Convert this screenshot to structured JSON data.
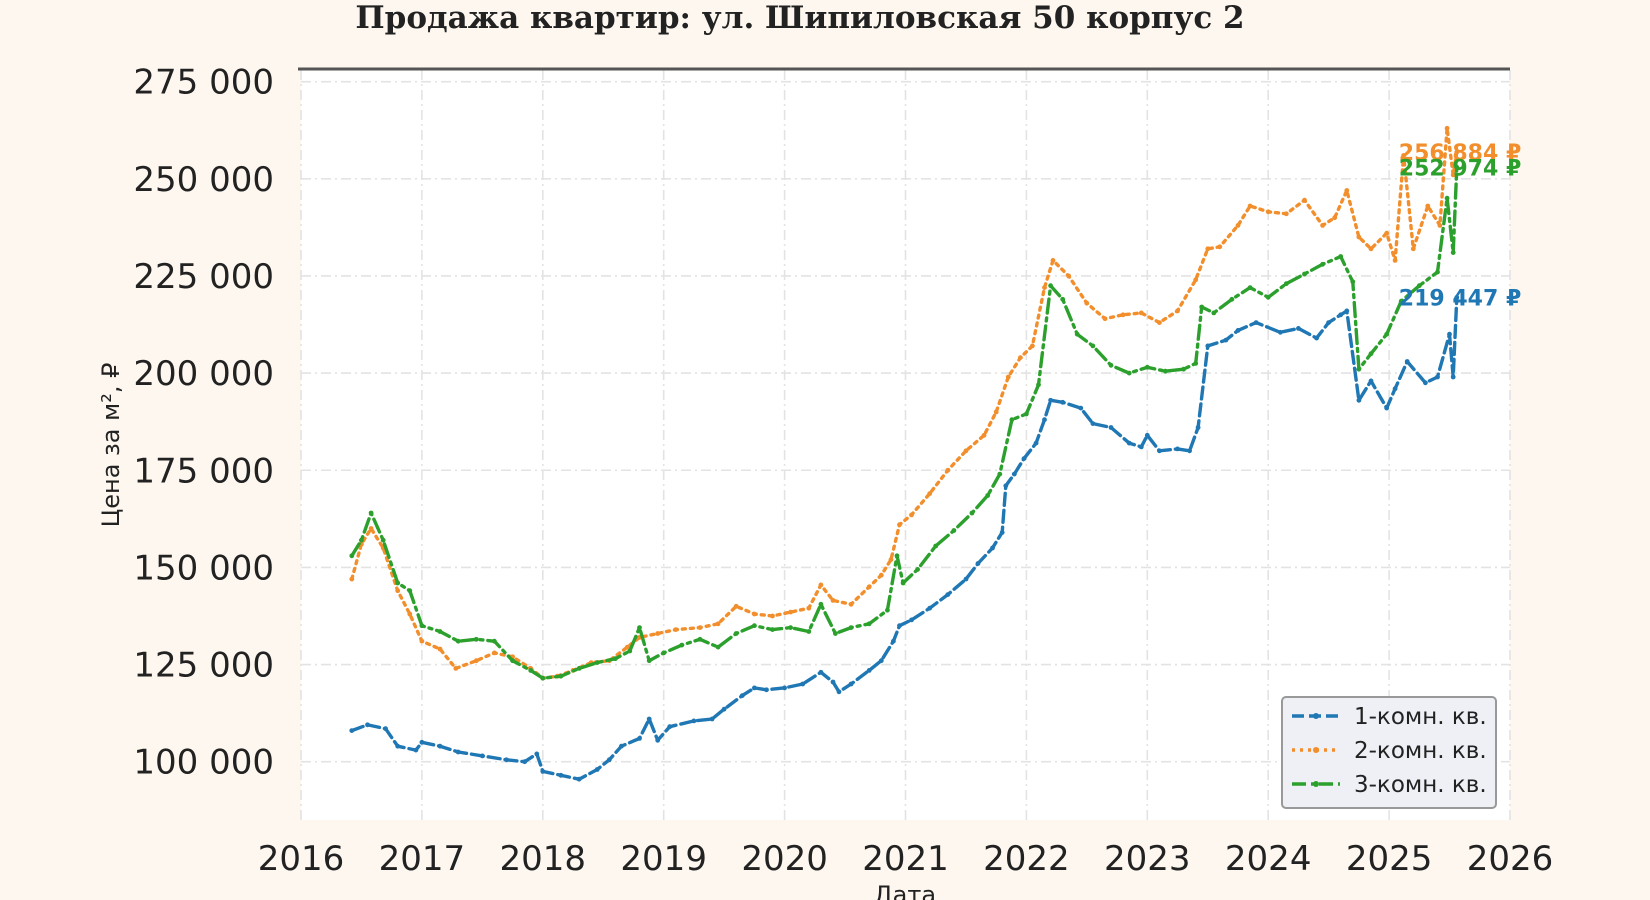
{
  "chart_data": {
    "type": "line",
    "title": "Продажа квартир: ул. Шипиловская 50 корпус 2",
    "xlabel": "Дата",
    "ylabel": "Цена за м², ₽",
    "xlim": [
      2016.0,
      2026.0
    ],
    "ylim": [
      85000,
      278000
    ],
    "x_ticks": [
      "2016",
      "2017",
      "2018",
      "2019",
      "2020",
      "2021",
      "2022",
      "2023",
      "2024",
      "2025",
      "2026"
    ],
    "y_ticks": [
      "100 000",
      "125 000",
      "150 000",
      "175 000",
      "200 000",
      "225 000",
      "250 000",
      "275 000"
    ],
    "y_tick_values": [
      100000,
      125000,
      150000,
      175000,
      200000,
      225000,
      250000,
      275000
    ],
    "grid": true,
    "legend_position": "lower-right",
    "series": [
      {
        "name": "1-комн. кв.",
        "color": "#1f77b4",
        "style": "dashed",
        "end_label": "219 447 ₽",
        "end_value": 219447,
        "points": [
          [
            2016.42,
            108000
          ],
          [
            2016.55,
            109500
          ],
          [
            2016.7,
            108500
          ],
          [
            2016.8,
            104000
          ],
          [
            2016.95,
            103000
          ],
          [
            2017.0,
            105000
          ],
          [
            2017.15,
            104000
          ],
          [
            2017.3,
            102500
          ],
          [
            2017.5,
            101500
          ],
          [
            2017.7,
            100500
          ],
          [
            2017.85,
            100000
          ],
          [
            2017.95,
            102000
          ],
          [
            2018.0,
            97500
          ],
          [
            2018.15,
            96500
          ],
          [
            2018.3,
            95500
          ],
          [
            2018.45,
            98000
          ],
          [
            2018.55,
            100500
          ],
          [
            2018.65,
            104000
          ],
          [
            2018.8,
            106000
          ],
          [
            2018.88,
            111000
          ],
          [
            2018.95,
            105500
          ],
          [
            2019.05,
            109000
          ],
          [
            2019.25,
            110500
          ],
          [
            2019.4,
            111000
          ],
          [
            2019.5,
            113500
          ],
          [
            2019.65,
            117000
          ],
          [
            2019.75,
            119000
          ],
          [
            2019.85,
            118500
          ],
          [
            2020.0,
            119000
          ],
          [
            2020.15,
            120000
          ],
          [
            2020.3,
            123000
          ],
          [
            2020.4,
            120500
          ],
          [
            2020.45,
            118000
          ],
          [
            2020.55,
            120000
          ],
          [
            2020.7,
            123500
          ],
          [
            2020.8,
            126000
          ],
          [
            2020.9,
            131000
          ],
          [
            2020.95,
            135000
          ],
          [
            2021.05,
            136500
          ],
          [
            2021.2,
            139500
          ],
          [
            2021.35,
            143000
          ],
          [
            2021.5,
            147000
          ],
          [
            2021.6,
            151000
          ],
          [
            2021.72,
            155000
          ],
          [
            2021.8,
            159000
          ],
          [
            2021.83,
            171000
          ],
          [
            2021.9,
            174000
          ],
          [
            2021.98,
            178000
          ],
          [
            2022.08,
            182000
          ],
          [
            2022.15,
            188000
          ],
          [
            2022.2,
            193000
          ],
          [
            2022.3,
            192500
          ],
          [
            2022.45,
            191000
          ],
          [
            2022.55,
            187000
          ],
          [
            2022.7,
            186000
          ],
          [
            2022.85,
            182000
          ],
          [
            2022.95,
            181000
          ],
          [
            2023.0,
            184000
          ],
          [
            2023.1,
            180000
          ],
          [
            2023.25,
            180500
          ],
          [
            2023.35,
            180000
          ],
          [
            2023.42,
            186000
          ],
          [
            2023.5,
            207000
          ],
          [
            2023.65,
            208500
          ],
          [
            2023.75,
            211000
          ],
          [
            2023.9,
            213000
          ],
          [
            2024.1,
            210500
          ],
          [
            2024.25,
            211500
          ],
          [
            2024.4,
            209000
          ],
          [
            2024.5,
            213000
          ],
          [
            2024.6,
            215000
          ],
          [
            2024.65,
            216000
          ],
          [
            2024.75,
            193000
          ],
          [
            2024.85,
            198000
          ],
          [
            2024.98,
            191000
          ],
          [
            2025.05,
            196000
          ],
          [
            2025.15,
            203000
          ],
          [
            2025.3,
            197500
          ],
          [
            2025.4,
            199000
          ],
          [
            2025.5,
            210000
          ],
          [
            2025.53,
            199000
          ],
          [
            2025.56,
            219447
          ]
        ]
      },
      {
        "name": "2-комн. кв.",
        "color": "#f28e2b",
        "style": "dotted",
        "end_label": "256 884 ₽",
        "end_value": 256884,
        "points": [
          [
            2016.42,
            147000
          ],
          [
            2016.5,
            156000
          ],
          [
            2016.58,
            160000
          ],
          [
            2016.68,
            155000
          ],
          [
            2016.8,
            144000
          ],
          [
            2016.9,
            138000
          ],
          [
            2017.0,
            131000
          ],
          [
            2017.15,
            129000
          ],
          [
            2017.28,
            124000
          ],
          [
            2017.45,
            126000
          ],
          [
            2017.6,
            128000
          ],
          [
            2017.75,
            127000
          ],
          [
            2017.9,
            124000
          ],
          [
            2018.0,
            121500
          ],
          [
            2018.12,
            122000
          ],
          [
            2018.25,
            123500
          ],
          [
            2018.4,
            125500
          ],
          [
            2018.55,
            126000
          ],
          [
            2018.7,
            129500
          ],
          [
            2018.8,
            132000
          ],
          [
            2018.95,
            133000
          ],
          [
            2019.1,
            134000
          ],
          [
            2019.3,
            134500
          ],
          [
            2019.45,
            135500
          ],
          [
            2019.6,
            140000
          ],
          [
            2019.75,
            138000
          ],
          [
            2019.9,
            137500
          ],
          [
            2020.05,
            138500
          ],
          [
            2020.2,
            139500
          ],
          [
            2020.3,
            145500
          ],
          [
            2020.4,
            141500
          ],
          [
            2020.55,
            140500
          ],
          [
            2020.7,
            145000
          ],
          [
            2020.8,
            148000
          ],
          [
            2020.88,
            152000
          ],
          [
            2020.95,
            161000
          ],
          [
            2021.05,
            163500
          ],
          [
            2021.2,
            169000
          ],
          [
            2021.35,
            175000
          ],
          [
            2021.5,
            180000
          ],
          [
            2021.65,
            184000
          ],
          [
            2021.75,
            190000
          ],
          [
            2021.85,
            199000
          ],
          [
            2021.95,
            204000
          ],
          [
            2022.05,
            207000
          ],
          [
            2022.15,
            222000
          ],
          [
            2022.22,
            229000
          ],
          [
            2022.35,
            225000
          ],
          [
            2022.5,
            218000
          ],
          [
            2022.65,
            214000
          ],
          [
            2022.8,
            215000
          ],
          [
            2022.95,
            215500
          ],
          [
            2023.1,
            213000
          ],
          [
            2023.25,
            216000
          ],
          [
            2023.4,
            224000
          ],
          [
            2023.5,
            232000
          ],
          [
            2023.6,
            232500
          ],
          [
            2023.75,
            238000
          ],
          [
            2023.85,
            243000
          ],
          [
            2024.0,
            241500
          ],
          [
            2024.15,
            241000
          ],
          [
            2024.3,
            244500
          ],
          [
            2024.45,
            238000
          ],
          [
            2024.55,
            240000
          ],
          [
            2024.65,
            247000
          ],
          [
            2024.75,
            235000
          ],
          [
            2024.85,
            232000
          ],
          [
            2024.98,
            236000
          ],
          [
            2025.05,
            229000
          ],
          [
            2025.12,
            256000
          ],
          [
            2025.2,
            232000
          ],
          [
            2025.32,
            243000
          ],
          [
            2025.42,
            238000
          ],
          [
            2025.48,
            263000
          ],
          [
            2025.53,
            251000
          ],
          [
            2025.56,
            256884
          ]
        ]
      },
      {
        "name": "3-комн. кв.",
        "color": "#2ca02c",
        "style": "dashdot",
        "end_label": "252 974 ₽",
        "end_value": 252974,
        "points": [
          [
            2016.42,
            153000
          ],
          [
            2016.5,
            157000
          ],
          [
            2016.58,
            164000
          ],
          [
            2016.68,
            157000
          ],
          [
            2016.8,
            146000
          ],
          [
            2016.9,
            144000
          ],
          [
            2017.0,
            135000
          ],
          [
            2017.15,
            133500
          ],
          [
            2017.3,
            131000
          ],
          [
            2017.45,
            131500
          ],
          [
            2017.6,
            131000
          ],
          [
            2017.75,
            126000
          ],
          [
            2017.9,
            123500
          ],
          [
            2018.0,
            121500
          ],
          [
            2018.15,
            122000
          ],
          [
            2018.3,
            124000
          ],
          [
            2018.45,
            125500
          ],
          [
            2018.6,
            126500
          ],
          [
            2018.72,
            128500
          ],
          [
            2018.8,
            134500
          ],
          [
            2018.88,
            126000
          ],
          [
            2019.0,
            128000
          ],
          [
            2019.15,
            130000
          ],
          [
            2019.3,
            131500
          ],
          [
            2019.45,
            129500
          ],
          [
            2019.6,
            133000
          ],
          [
            2019.75,
            135000
          ],
          [
            2019.9,
            134000
          ],
          [
            2020.05,
            134500
          ],
          [
            2020.2,
            133500
          ],
          [
            2020.3,
            140500
          ],
          [
            2020.42,
            133000
          ],
          [
            2020.55,
            134500
          ],
          [
            2020.7,
            135500
          ],
          [
            2020.85,
            139000
          ],
          [
            2020.93,
            153000
          ],
          [
            2020.98,
            146000
          ],
          [
            2021.1,
            149500
          ],
          [
            2021.25,
            155500
          ],
          [
            2021.4,
            159500
          ],
          [
            2021.55,
            164000
          ],
          [
            2021.68,
            168500
          ],
          [
            2021.78,
            174000
          ],
          [
            2021.88,
            188000
          ],
          [
            2022.0,
            189500
          ],
          [
            2022.1,
            197000
          ],
          [
            2022.2,
            222500
          ],
          [
            2022.3,
            219000
          ],
          [
            2022.42,
            210000
          ],
          [
            2022.55,
            207000
          ],
          [
            2022.7,
            202000
          ],
          [
            2022.85,
            200000
          ],
          [
            2023.0,
            201500
          ],
          [
            2023.15,
            200500
          ],
          [
            2023.3,
            201000
          ],
          [
            2023.4,
            202500
          ],
          [
            2023.45,
            217000
          ],
          [
            2023.55,
            215500
          ],
          [
            2023.7,
            219000
          ],
          [
            2023.85,
            222000
          ],
          [
            2024.0,
            219500
          ],
          [
            2024.15,
            223000
          ],
          [
            2024.3,
            225500
          ],
          [
            2024.45,
            228000
          ],
          [
            2024.6,
            230000
          ],
          [
            2024.7,
            223500
          ],
          [
            2024.75,
            201000
          ],
          [
            2024.85,
            205000
          ],
          [
            2024.98,
            210000
          ],
          [
            2025.1,
            218500
          ],
          [
            2025.25,
            222500
          ],
          [
            2025.4,
            226000
          ],
          [
            2025.48,
            245000
          ],
          [
            2025.53,
            231000
          ],
          [
            2025.56,
            252974
          ]
        ]
      }
    ]
  }
}
